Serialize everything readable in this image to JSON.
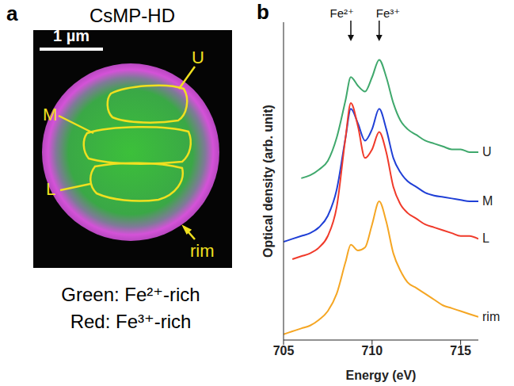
{
  "image_panel": {
    "panel_label": "a",
    "title": "CsMP-HD",
    "scale_bar": "1 µm",
    "regions": [
      "U",
      "M",
      "L",
      "rim"
    ],
    "caption": [
      "Green: Fe²⁺-rich",
      "Red: Fe³⁺-rich"
    ]
  },
  "chart_data": {
    "type": "line",
    "panel_label": "b",
    "x_label": "Energy (eV)",
    "y_label": "Optical density (arb. unit)",
    "x": [
      705,
      705.5,
      706,
      706.5,
      707,
      707.5,
      708,
      708.5,
      708.8,
      709.2,
      709.6,
      710,
      710.4,
      710.8,
      711.2,
      711.6,
      712,
      712.5,
      713,
      713.5,
      714,
      714.5,
      715,
      715.5,
      716
    ],
    "series": [
      {
        "name": "U",
        "color": "#3fa86c",
        "values": [
          null,
          null,
          5.6,
          5.7,
          5.9,
          6.2,
          7.0,
          8.3,
          9.1,
          8.8,
          8.6,
          9.1,
          9.7,
          9.1,
          8.2,
          7.6,
          7.3,
          7.1,
          6.9,
          6.8,
          6.7,
          6.6,
          6.6,
          6.5,
          6.5
        ]
      },
      {
        "name": "M",
        "color": "#1f3fd6",
        "values": [
          3.4,
          3.5,
          3.6,
          3.7,
          3.9,
          4.3,
          5.2,
          7.0,
          8.0,
          7.5,
          6.9,
          7.3,
          8.0,
          7.3,
          6.3,
          5.8,
          5.5,
          5.3,
          5.1,
          5.0,
          4.95,
          4.9,
          4.85,
          4.8,
          4.8
        ]
      },
      {
        "name": "L",
        "color": "#f03a2a",
        "values": [
          null,
          2.8,
          2.9,
          3.0,
          3.2,
          3.6,
          4.6,
          7.0,
          8.2,
          7.4,
          6.3,
          6.6,
          7.2,
          6.5,
          5.3,
          4.7,
          4.4,
          4.2,
          4.0,
          3.9,
          3.8,
          3.7,
          3.6,
          3.6,
          3.5
        ]
      },
      {
        "name": "rim",
        "color": "#f5a623",
        "values": [
          0.2,
          0.3,
          0.4,
          0.5,
          0.7,
          1.0,
          1.6,
          2.7,
          3.3,
          3.1,
          3.2,
          4.0,
          4.8,
          4.1,
          3.0,
          2.4,
          2.0,
          1.8,
          1.6,
          1.4,
          1.2,
          1.1,
          1.0,
          0.9,
          0.8
        ]
      }
    ],
    "annotations": [
      {
        "text": "Fe²⁺",
        "x": 708.8
      },
      {
        "text": "Fe³⁺",
        "x": 710.4
      }
    ],
    "xlim": [
      705,
      716
    ],
    "xticks": [
      705,
      710,
      715
    ],
    "ylim": [
      0,
      11
    ],
    "tick_labels": "x",
    "grid": false
  }
}
